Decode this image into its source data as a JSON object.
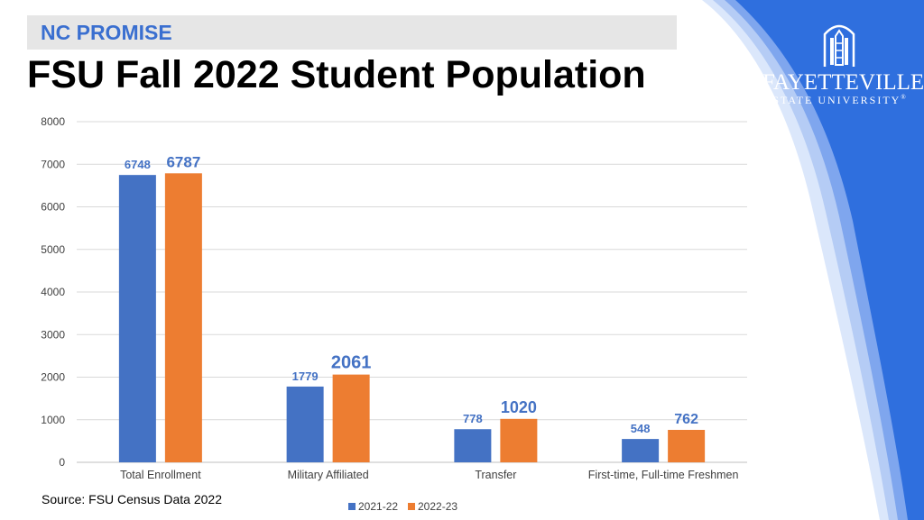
{
  "slide": {
    "banner_text": "NC PROMISE",
    "title": "FSU Fall 2022 Student Population",
    "source": "Source: FSU Census Data 2022"
  },
  "logo": {
    "line1": "FAYETTEVILLE",
    "line2": "STATE UNIVERSITY",
    "trademark": "®"
  },
  "colors": {
    "banner_text": "#3a6fd0",
    "series_2021": "#4472c4",
    "series_2022": "#ed7d31",
    "label_text": "#4472c4",
    "deco_blue": "#2f6fde"
  },
  "chart_data": {
    "type": "bar",
    "categories": [
      "Total Enrollment",
      "Military Affiliated",
      "Transfer",
      "First-time, Full-time Freshmen"
    ],
    "series": [
      {
        "name": "2021-22",
        "values": [
          6748,
          1779,
          778,
          548
        ]
      },
      {
        "name": "2022-23",
        "values": [
          6787,
          2061,
          1020,
          762
        ]
      }
    ],
    "ylim": [
      0,
      8000
    ],
    "yticks": [
      0,
      1000,
      2000,
      3000,
      4000,
      5000,
      6000,
      7000,
      8000
    ],
    "grid": true,
    "legend": "bottom",
    "title": "",
    "xlabel": "",
    "ylabel": ""
  }
}
